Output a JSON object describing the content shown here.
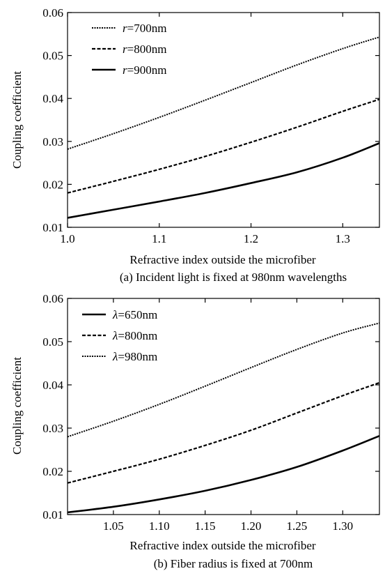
{
  "chart_data": [
    {
      "type": "line",
      "caption": "(a) Incident light is fixed at 980nm wavelengths",
      "xlabel": "Refractive index outside the microfiber",
      "ylabel": "Coupling coefficient",
      "xlim": [
        1.0,
        1.34
      ],
      "ylim": [
        0.01,
        0.06
      ],
      "xticks": [
        "1.0",
        "1.1",
        "1.2",
        "1.3"
      ],
      "xtick_values": [
        1.0,
        1.1,
        1.2,
        1.3
      ],
      "yticks": [
        "0.01",
        "0.02",
        "0.03",
        "0.04",
        "0.05",
        "0.06"
      ],
      "ytick_values": [
        0.01,
        0.02,
        0.03,
        0.04,
        0.05,
        0.06
      ],
      "legend_position": "top-left",
      "grid": false,
      "x": [
        1.0,
        1.05,
        1.1,
        1.15,
        1.2,
        1.25,
        1.3,
        1.34
      ],
      "series": [
        {
          "legend_prefix": "r",
          "legend_suffix": "=700nm",
          "style": "dotted",
          "values": [
            0.0282,
            0.0318,
            0.0356,
            0.0396,
            0.0437,
            0.0478,
            0.0516,
            0.0543
          ]
        },
        {
          "legend_prefix": "r",
          "legend_suffix": "=800nm",
          "style": "dashed",
          "values": [
            0.018,
            0.0207,
            0.0235,
            0.0265,
            0.0298,
            0.0333,
            0.037,
            0.0398
          ]
        },
        {
          "legend_prefix": "r",
          "legend_suffix": "=900nm",
          "style": "solid",
          "values": [
            0.0122,
            0.0141,
            0.016,
            0.018,
            0.0203,
            0.0228,
            0.0262,
            0.0296
          ]
        }
      ]
    },
    {
      "type": "line",
      "caption": "(b) Fiber radius is fixed at 700nm",
      "xlabel": "Refractive index outside the microfiber",
      "ylabel": "Coupling coefficient",
      "xlim": [
        1.0,
        1.34
      ],
      "ylim": [
        0.01,
        0.06
      ],
      "xticks": [
        "1.05",
        "1.10",
        "1.15",
        "1.20",
        "1.25",
        "1.30"
      ],
      "xtick_values": [
        1.05,
        1.1,
        1.15,
        1.2,
        1.25,
        1.3
      ],
      "yticks": [
        "0.01",
        "0.02",
        "0.03",
        "0.04",
        "0.05",
        "0.06"
      ],
      "ytick_values": [
        0.01,
        0.02,
        0.03,
        0.04,
        0.05,
        0.06
      ],
      "legend_position": "top-left",
      "grid": false,
      "x": [
        1.0,
        1.05,
        1.1,
        1.15,
        1.2,
        1.25,
        1.3,
        1.34
      ],
      "series": [
        {
          "legend_prefix": "λ",
          "legend_suffix": "=650nm",
          "style": "solid",
          "values": [
            0.0105,
            0.0118,
            0.0135,
            0.0155,
            0.018,
            0.021,
            0.0248,
            0.0282
          ]
        },
        {
          "legend_prefix": "λ",
          "legend_suffix": "=800nm",
          "style": "dashed",
          "values": [
            0.0173,
            0.02,
            0.0228,
            0.026,
            0.0295,
            0.0335,
            0.0375,
            0.0405
          ]
        },
        {
          "legend_prefix": "λ",
          "legend_suffix": "=980nm",
          "style": "dotted",
          "values": [
            0.028,
            0.0316,
            0.0355,
            0.0397,
            0.044,
            0.0482,
            0.052,
            0.0543
          ]
        }
      ]
    }
  ]
}
